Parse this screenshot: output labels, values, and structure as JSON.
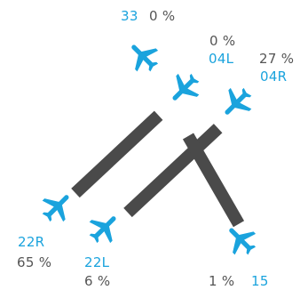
{
  "colors": {
    "plane": "#1aa3dd",
    "runway": "#4a4a4a",
    "runway_label": "#1aa3dd",
    "percent_label": "#555555"
  },
  "runways": [
    {
      "id": "33",
      "percent": "0 %"
    },
    {
      "id": "04L",
      "percent": "0 %"
    },
    {
      "id": "04R",
      "percent": "27 %"
    },
    {
      "id": "22R",
      "percent": "65 %"
    },
    {
      "id": "22L",
      "percent": "6 %"
    },
    {
      "id": "15",
      "percent": "1 %"
    }
  ],
  "icons": {
    "aircraft": "airplane-icon"
  }
}
